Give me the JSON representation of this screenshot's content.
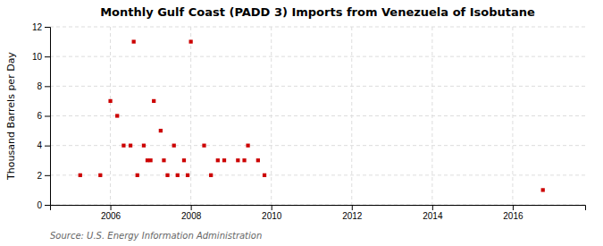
{
  "chart_data": {
    "type": "scatter",
    "title": "Monthly Gulf Coast (PADD 3) Imports from Venezuela of Isobutane",
    "y_label": "Thousand Barrels per Day",
    "source": "Source: U.S. Energy Information Administration",
    "color": "#cc0000",
    "marker": "square",
    "grid": true,
    "xlim": [
      2004.5,
      2017.8
    ],
    "ylim": [
      0,
      12
    ],
    "xticks": [
      2006,
      2008,
      2010,
      2012,
      2014,
      2016
    ],
    "yticks": [
      0,
      2,
      4,
      6,
      8,
      10,
      12
    ],
    "x": [
      2005.25,
      2005.75,
      2006.0,
      2006.17,
      2006.33,
      2006.5,
      2006.58,
      2006.67,
      2006.83,
      2006.92,
      2007.0,
      2007.08,
      2007.25,
      2007.33,
      2007.42,
      2007.58,
      2007.67,
      2007.83,
      2007.92,
      2008.0,
      2008.33,
      2008.5,
      2008.67,
      2008.83,
      2009.17,
      2009.33,
      2009.42,
      2009.67,
      2009.83,
      2016.75
    ],
    "values": [
      2,
      2,
      7,
      6,
      4,
      4,
      11,
      2,
      4,
      3,
      3,
      7,
      5,
      3,
      2,
      4,
      2,
      3,
      2,
      11,
      4,
      2,
      3,
      3,
      3,
      3,
      4,
      3,
      2,
      1
    ]
  }
}
